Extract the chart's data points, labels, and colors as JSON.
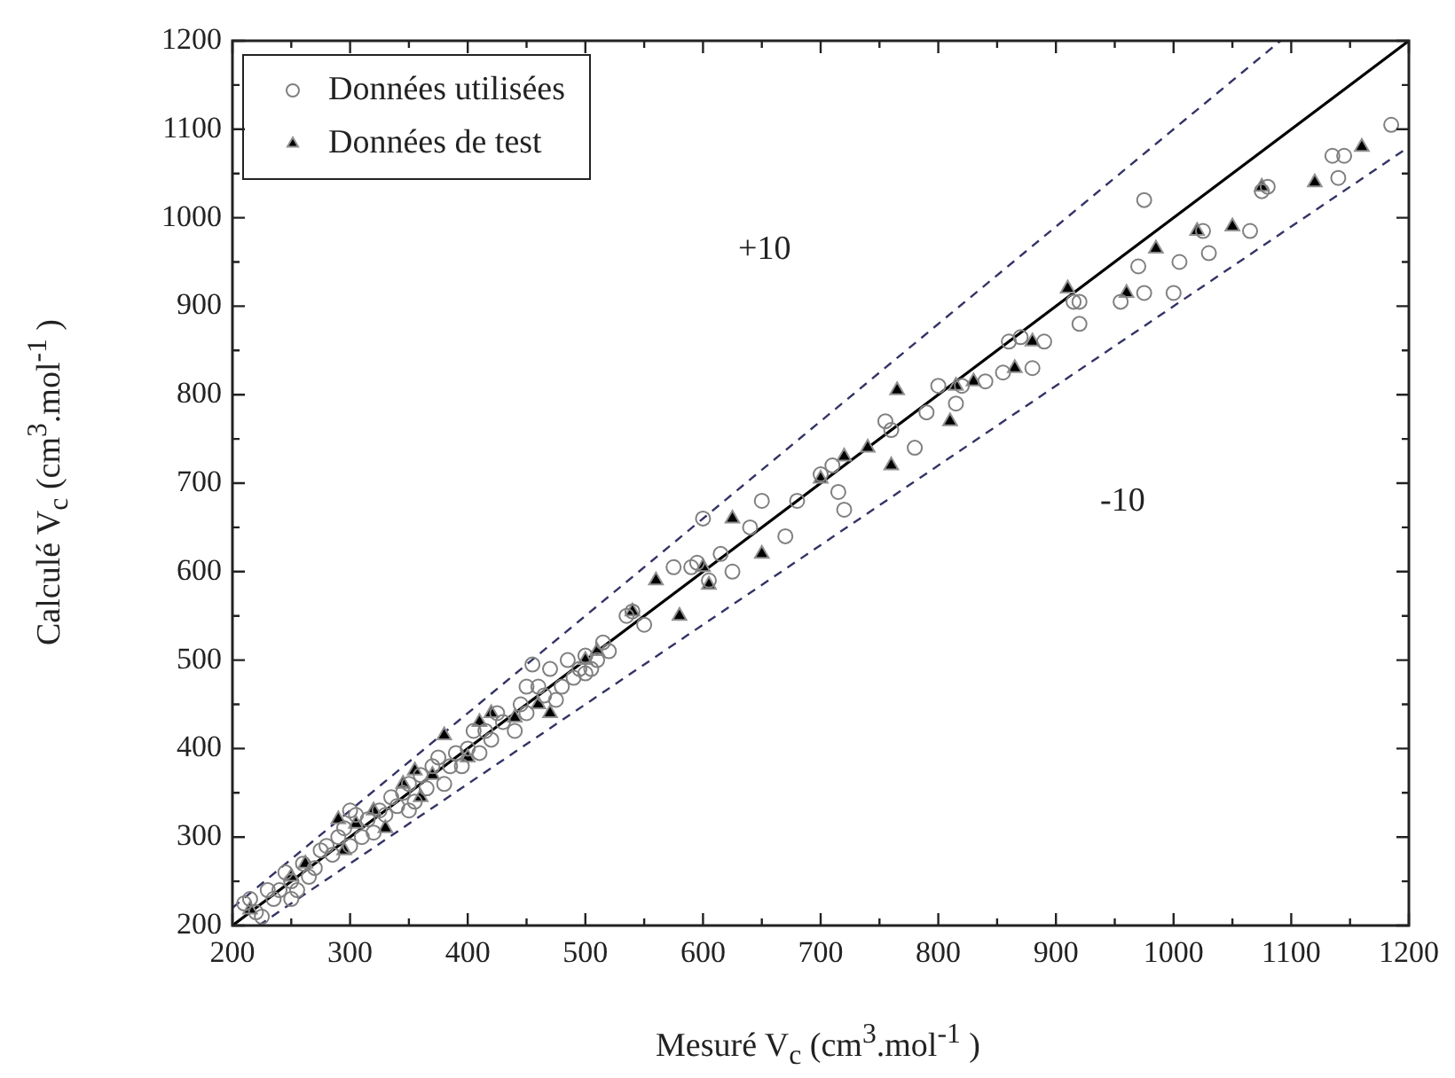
{
  "chart_data": {
    "type": "scatter",
    "xlabel": "Mesuré V$_{c}$ (cm$^{3}$.mol$^{-1}$ )",
    "ylabel": "Calculé V$_{c}$ (cm$^{3}$.mol$^{-1}$ )",
    "xlim": [
      200,
      1200
    ],
    "xticks": [
      200,
      300,
      400,
      500,
      600,
      700,
      800,
      900,
      1000,
      1100,
      1200
    ],
    "ylim": [
      200,
      1200
    ],
    "yticks": [
      200,
      300,
      400,
      500,
      600,
      700,
      800,
      900,
      1000,
      1100,
      1200
    ],
    "grid": false,
    "legend": "top left",
    "annotations": [
      "+10",
      "-10"
    ],
    "series": [
      {
        "name": "Données utilisées",
        "marker": "circle",
        "color": "#808080",
        "x": [
          1185,
          1135,
          1140,
          1145,
          1080,
          1075,
          1065,
          1025,
          1030,
          1000,
          1005,
          975,
          970,
          975,
          955,
          920,
          920,
          915,
          890,
          880,
          870,
          860,
          855,
          840,
          820,
          815,
          800,
          790,
          780,
          760,
          755,
          720,
          715,
          710,
          700,
          680,
          670,
          650,
          640,
          625,
          615,
          605,
          600,
          595,
          590,
          575,
          550,
          540,
          535,
          520,
          515,
          510,
          505,
          500,
          495,
          490,
          485,
          480,
          475,
          470,
          465,
          460,
          455,
          450,
          445,
          440,
          430,
          425,
          420,
          415,
          405,
          400,
          395,
          390,
          385,
          380,
          375,
          370,
          365,
          360,
          355,
          350,
          345,
          340,
          335,
          330,
          325,
          320,
          315,
          310,
          305,
          300,
          295,
          290,
          285,
          280,
          275,
          270,
          265,
          260,
          255,
          250,
          245,
          240,
          235,
          230,
          225,
          220,
          215,
          210,
          250,
          300,
          350,
          450,
          500,
          410
        ],
        "values": [
          1105,
          1070,
          1045,
          1070,
          1035,
          1030,
          985,
          985,
          960,
          915,
          950,
          1020,
          945,
          915,
          905,
          880,
          905,
          905,
          860,
          830,
          865,
          860,
          825,
          815,
          810,
          790,
          810,
          780,
          740,
          760,
          770,
          670,
          690,
          720,
          710,
          680,
          640,
          680,
          650,
          600,
          620,
          590,
          660,
          610,
          605,
          605,
          540,
          555,
          550,
          510,
          520,
          500,
          490,
          485,
          490,
          480,
          500,
          470,
          455,
          490,
          460,
          470,
          495,
          440,
          450,
          420,
          430,
          440,
          410,
          420,
          420,
          400,
          380,
          395,
          380,
          360,
          390,
          380,
          355,
          370,
          340,
          360,
          350,
          335,
          345,
          325,
          330,
          305,
          320,
          300,
          325,
          290,
          310,
          300,
          280,
          290,
          285,
          265,
          255,
          270,
          240,
          250,
          260,
          240,
          230,
          240,
          210,
          215,
          230,
          225,
          230,
          330,
          330,
          470,
          505,
          395
        ]
      },
      {
        "name": "Données de test",
        "marker": "triangle",
        "color": "#000000",
        "x": [
          215,
          250,
          262,
          290,
          295,
          305,
          320,
          330,
          345,
          355,
          360,
          370,
          380,
          400,
          410,
          420,
          440,
          460,
          470,
          500,
          510,
          540,
          560,
          580,
          600,
          605,
          625,
          650,
          700,
          720,
          740,
          760,
          765,
          810,
          815,
          830,
          865,
          880,
          910,
          960,
          985,
          1020,
          1050,
          1075,
          1120,
          1160
        ],
        "values": [
          218,
          255,
          270,
          320,
          285,
          315,
          330,
          310,
          360,
          375,
          345,
          370,
          415,
          390,
          430,
          440,
          435,
          450,
          440,
          500,
          510,
          555,
          590,
          550,
          605,
          585,
          660,
          620,
          705,
          730,
          740,
          720,
          805,
          770,
          810,
          815,
          830,
          860,
          920,
          915,
          965,
          985,
          990,
          1035,
          1040,
          1080
        ]
      },
      {
        "type": "line",
        "color": "#000000",
        "line_style": "solid",
        "x": [
          200,
          1200
        ],
        "values": [
          200,
          1200
        ]
      },
      {
        "type": "line",
        "color": "#333366",
        "line_style": "dashed",
        "x": [
          200,
          1090.9
        ],
        "values": [
          220,
          1200
        ]
      },
      {
        "type": "line",
        "color": "#333366",
        "line_style": "dashed",
        "x": [
          222.2,
          1200
        ],
        "values": [
          200,
          1080
        ]
      }
    ]
  }
}
